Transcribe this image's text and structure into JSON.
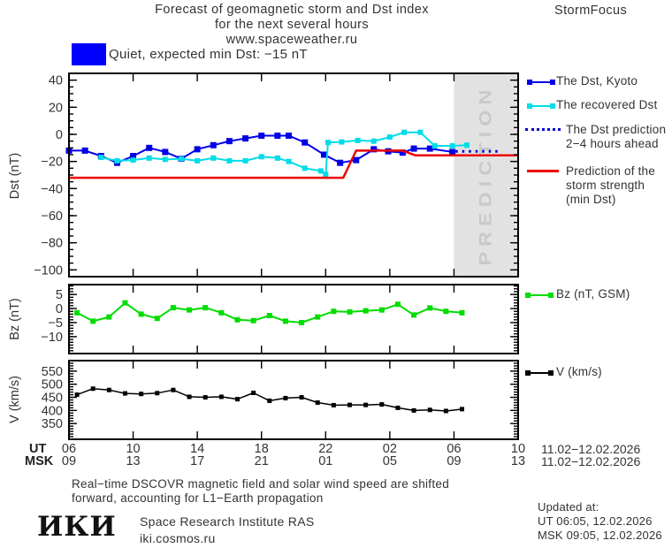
{
  "header": {
    "title_line1": "Forecast of geomagnetic storm and Dst index",
    "title_line2": "for the next several hours",
    "title_line3": "www.spaceweather.ru",
    "brand": "StormFocus"
  },
  "status": {
    "swatch_color": "#0000ff",
    "text": "Quiet, expected min Dst: −15 nT"
  },
  "legend_dst": {
    "kyoto": "The Dst, Kyoto",
    "recovered": "The recovered Dst",
    "prediction_line1": "The Dst prediction",
    "prediction_line2": "2−4 hours ahead",
    "strength_line1": "Prediction of the",
    "strength_line2": "storm strength",
    "strength_line3": "(min Dst)"
  },
  "legend_bz": "Bz (nT, GSM)",
  "legend_v": "V (km/s)",
  "axis": {
    "ut_label": "UT",
    "msk_label": "MSK",
    "ut_ticks": [
      "06",
      "10",
      "14",
      "18",
      "22",
      "02",
      "06",
      "10"
    ],
    "msk_ticks": [
      "09",
      "13",
      "17",
      "21",
      "01",
      "05",
      "09",
      "13"
    ],
    "ut_date": "11.02−12.02.2026",
    "msk_date": "11.02−12.02.2026"
  },
  "footer": {
    "note_line1": "Real−time DSCOVR magnetic field and solar wind speed are shifted",
    "note_line2": "forward, accounting for L1−Earth propagation",
    "logo_text": "ИКИ",
    "institute": "Space Research Institute RAS",
    "site": "iki.cosmos.ru",
    "updated_label": "Updated at:",
    "updated_ut": "UT   06:05, 12.02.2026",
    "updated_msk": "MSK 09:05, 12.02.2026"
  },
  "chart_data": [
    {
      "type": "line",
      "panel": "dst",
      "ylabel": "Dst (nT)",
      "ylim": [
        -105,
        45
      ],
      "yticks": [
        40,
        20,
        0,
        -20,
        -40,
        -60,
        -80,
        -100
      ],
      "yminor": 5,
      "xlim": [
        0,
        28
      ],
      "x_unit_note": "hours after 06:00 UT 11.02.2026; ticks every 4 h (UT 06,10,14,18,22,02,06,10)",
      "xticks_hours": [
        0,
        4,
        8,
        12,
        16,
        20,
        24,
        28
      ],
      "prediction_band_hours": [
        24,
        28
      ],
      "prediction_label": "PREDICTION",
      "series": [
        {
          "key": "dst-kyoto",
          "name": "The Dst, Kyoto",
          "color": "#0000e8",
          "width": 2,
          "marker": 7,
          "points": [
            [
              0,
              -12
            ],
            [
              1,
              -12
            ],
            [
              2,
              -16
            ],
            [
              3,
              -21
            ],
            [
              4,
              -16
            ],
            [
              5,
              -10
            ],
            [
              6,
              -13
            ],
            [
              7,
              -18
            ],
            [
              8,
              -11
            ],
            [
              9,
              -8
            ],
            [
              10,
              -5
            ],
            [
              11,
              -3
            ],
            [
              12,
              -1
            ],
            [
              13,
              -1
            ],
            [
              13.7,
              -1
            ],
            [
              14.7,
              -6
            ],
            [
              15.9,
              -15
            ],
            [
              16.9,
              -21
            ],
            [
              17.9,
              -19
            ],
            [
              19,
              -11
            ],
            [
              19.9,
              -12.5
            ],
            [
              20.8,
              -13.5
            ],
            [
              21.5,
              -10.5
            ],
            [
              22.5,
              -10.5
            ],
            [
              23.9,
              -13
            ]
          ]
        },
        {
          "key": "recovered-dst",
          "name": "The recovered Dst",
          "color": "#00dde8",
          "width": 2,
          "marker": 6,
          "points": [
            [
              2,
              -17
            ],
            [
              3,
              -19.5
            ],
            [
              4,
              -19
            ],
            [
              5,
              -17.5
            ],
            [
              6,
              -18.5
            ],
            [
              7,
              -18
            ],
            [
              8,
              -19.5
            ],
            [
              9,
              -17.5
            ],
            [
              10,
              -19.5
            ],
            [
              11,
              -19.5
            ],
            [
              12,
              -16.5
            ],
            [
              13,
              -17.5
            ],
            [
              13.7,
              -20
            ],
            [
              14.7,
              -25
            ],
            [
              15.7,
              -27
            ],
            [
              16,
              -29.5
            ],
            [
              16.15,
              -6
            ],
            [
              17,
              -5.6
            ],
            [
              18,
              -4.5
            ],
            [
              19,
              -5
            ],
            [
              20,
              -2
            ],
            [
              20.9,
              1.5
            ],
            [
              21.9,
              1.5
            ],
            [
              22.8,
              -8.5
            ],
            [
              23.9,
              -8.5
            ],
            [
              24.8,
              -8
            ]
          ]
        },
        {
          "key": "dst-prediction",
          "name": "The Dst prediction 2−4 hours ahead",
          "color": "#0000d0",
          "width": 3,
          "style": "dotted",
          "points": [
            [
              24.1,
              -12.5
            ],
            [
              26.9,
              -12.5
            ]
          ]
        },
        {
          "key": "storm-strength",
          "name": "Prediction of the storm strength (min Dst)",
          "color": "#ee0000",
          "width": 2.5,
          "points": [
            [
              0,
              -32
            ],
            [
              17.1,
              -32
            ],
            [
              17.9,
              -12
            ],
            [
              20.8,
              -12
            ],
            [
              21.6,
              -15.5
            ],
            [
              28,
              -15.5
            ]
          ]
        }
      ]
    },
    {
      "type": "line",
      "panel": "bz",
      "ylabel": "Bz (nT)",
      "ylim": [
        -16,
        8.5
      ],
      "yticks": [
        5,
        0,
        -5,
        -10
      ],
      "yminor": 1,
      "xlim": [
        0,
        28
      ],
      "series": [
        {
          "key": "bz",
          "name": "Bz (nT, GSM)",
          "color": "#00dd00",
          "width": 2,
          "marker": 6,
          "points": [
            [
              0.5,
              -1.5
            ],
            [
              1.5,
              -4.5
            ],
            [
              2.5,
              -3
            ],
            [
              3.5,
              2
            ],
            [
              4.5,
              -2
            ],
            [
              5.5,
              -3.5
            ],
            [
              6.5,
              0.3
            ],
            [
              7.5,
              -0.5
            ],
            [
              8.5,
              0.3
            ],
            [
              9.5,
              -1.5
            ],
            [
              10.5,
              -4
            ],
            [
              11.5,
              -4.3
            ],
            [
              12.5,
              -2.5
            ],
            [
              13.5,
              -4.5
            ],
            [
              14.5,
              -5
            ],
            [
              15.5,
              -3
            ],
            [
              16.5,
              -1
            ],
            [
              17.5,
              -1.2
            ],
            [
              18.5,
              -0.8
            ],
            [
              19.5,
              -0.5
            ],
            [
              20.5,
              1.5
            ],
            [
              21.5,
              -2.3
            ],
            [
              22.5,
              0.2
            ],
            [
              23.5,
              -1
            ],
            [
              24.5,
              -1.5
            ]
          ]
        }
      ]
    },
    {
      "type": "line",
      "panel": "v",
      "ylabel": "V (km/s)",
      "ylim": [
        290,
        590
      ],
      "yticks": [
        550,
        500,
        450,
        400,
        350
      ],
      "yminor": 10,
      "xlim": [
        0,
        28
      ],
      "series": [
        {
          "key": "v",
          "name": "V (km/s)",
          "color": "#000000",
          "width": 1.5,
          "marker": 5,
          "points": [
            [
              0.5,
              460
            ],
            [
              1.5,
              483
            ],
            [
              2.5,
              478
            ],
            [
              3.5,
              465
            ],
            [
              4.5,
              463
            ],
            [
              5.5,
              466
            ],
            [
              6.5,
              478
            ],
            [
              7.5,
              452
            ],
            [
              8.5,
              450
            ],
            [
              9.5,
              452
            ],
            [
              10.5,
              443
            ],
            [
              11.5,
              467
            ],
            [
              12.5,
              437
            ],
            [
              13.5,
              447
            ],
            [
              14.5,
              450
            ],
            [
              15.5,
              430
            ],
            [
              16.5,
              420
            ],
            [
              17.5,
              421
            ],
            [
              18.5,
              421
            ],
            [
              19.5,
              423
            ],
            [
              20.5,
              410
            ],
            [
              21.5,
              400
            ],
            [
              22.5,
              402
            ],
            [
              23.5,
              398
            ],
            [
              24.5,
              405
            ]
          ]
        }
      ]
    }
  ]
}
